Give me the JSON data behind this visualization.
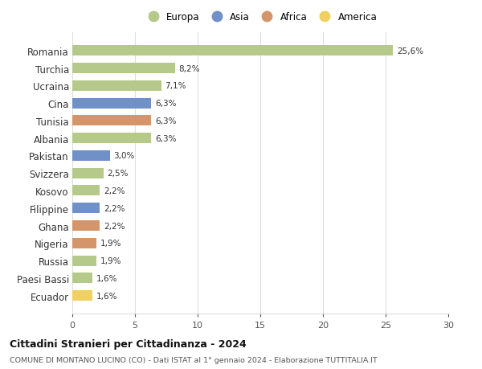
{
  "categories": [
    "Romania",
    "Turchia",
    "Ucraina",
    "Cina",
    "Tunisia",
    "Albania",
    "Pakistan",
    "Svizzera",
    "Kosovo",
    "Filippine",
    "Ghana",
    "Nigeria",
    "Russia",
    "Paesi Bassi",
    "Ecuador"
  ],
  "values": [
    25.6,
    8.2,
    7.1,
    6.3,
    6.3,
    6.3,
    3.0,
    2.5,
    2.2,
    2.2,
    2.2,
    1.9,
    1.9,
    1.6,
    1.6
  ],
  "labels": [
    "25,6%",
    "8,2%",
    "7,1%",
    "6,3%",
    "6,3%",
    "6,3%",
    "3,0%",
    "2,5%",
    "2,2%",
    "2,2%",
    "2,2%",
    "1,9%",
    "1,9%",
    "1,6%",
    "1,6%"
  ],
  "bar_colors": [
    "#b5c98a",
    "#b5c98a",
    "#b5c98a",
    "#7090c8",
    "#d4956a",
    "#b5c98a",
    "#7090c8",
    "#b5c98a",
    "#b5c98a",
    "#7090c8",
    "#d4956a",
    "#d4956a",
    "#b5c98a",
    "#b5c98a",
    "#f0d060"
  ],
  "legend_labels": [
    "Europa",
    "Asia",
    "Africa",
    "America"
  ],
  "legend_colors": [
    "#b5c98a",
    "#7090c8",
    "#d4956a",
    "#f0d060"
  ],
  "title": "Cittadini Stranieri per Cittadinanza - 2024",
  "subtitle": "COMUNE DI MONTANO LUCINO (CO) - Dati ISTAT al 1° gennaio 2024 - Elaborazione TUTTITALIA.IT",
  "xlim": [
    0,
    30
  ],
  "xticks": [
    0,
    5,
    10,
    15,
    20,
    25,
    30
  ],
  "background_color": "#ffffff",
  "grid_color": "#dddddd",
  "bar_height": 0.6
}
